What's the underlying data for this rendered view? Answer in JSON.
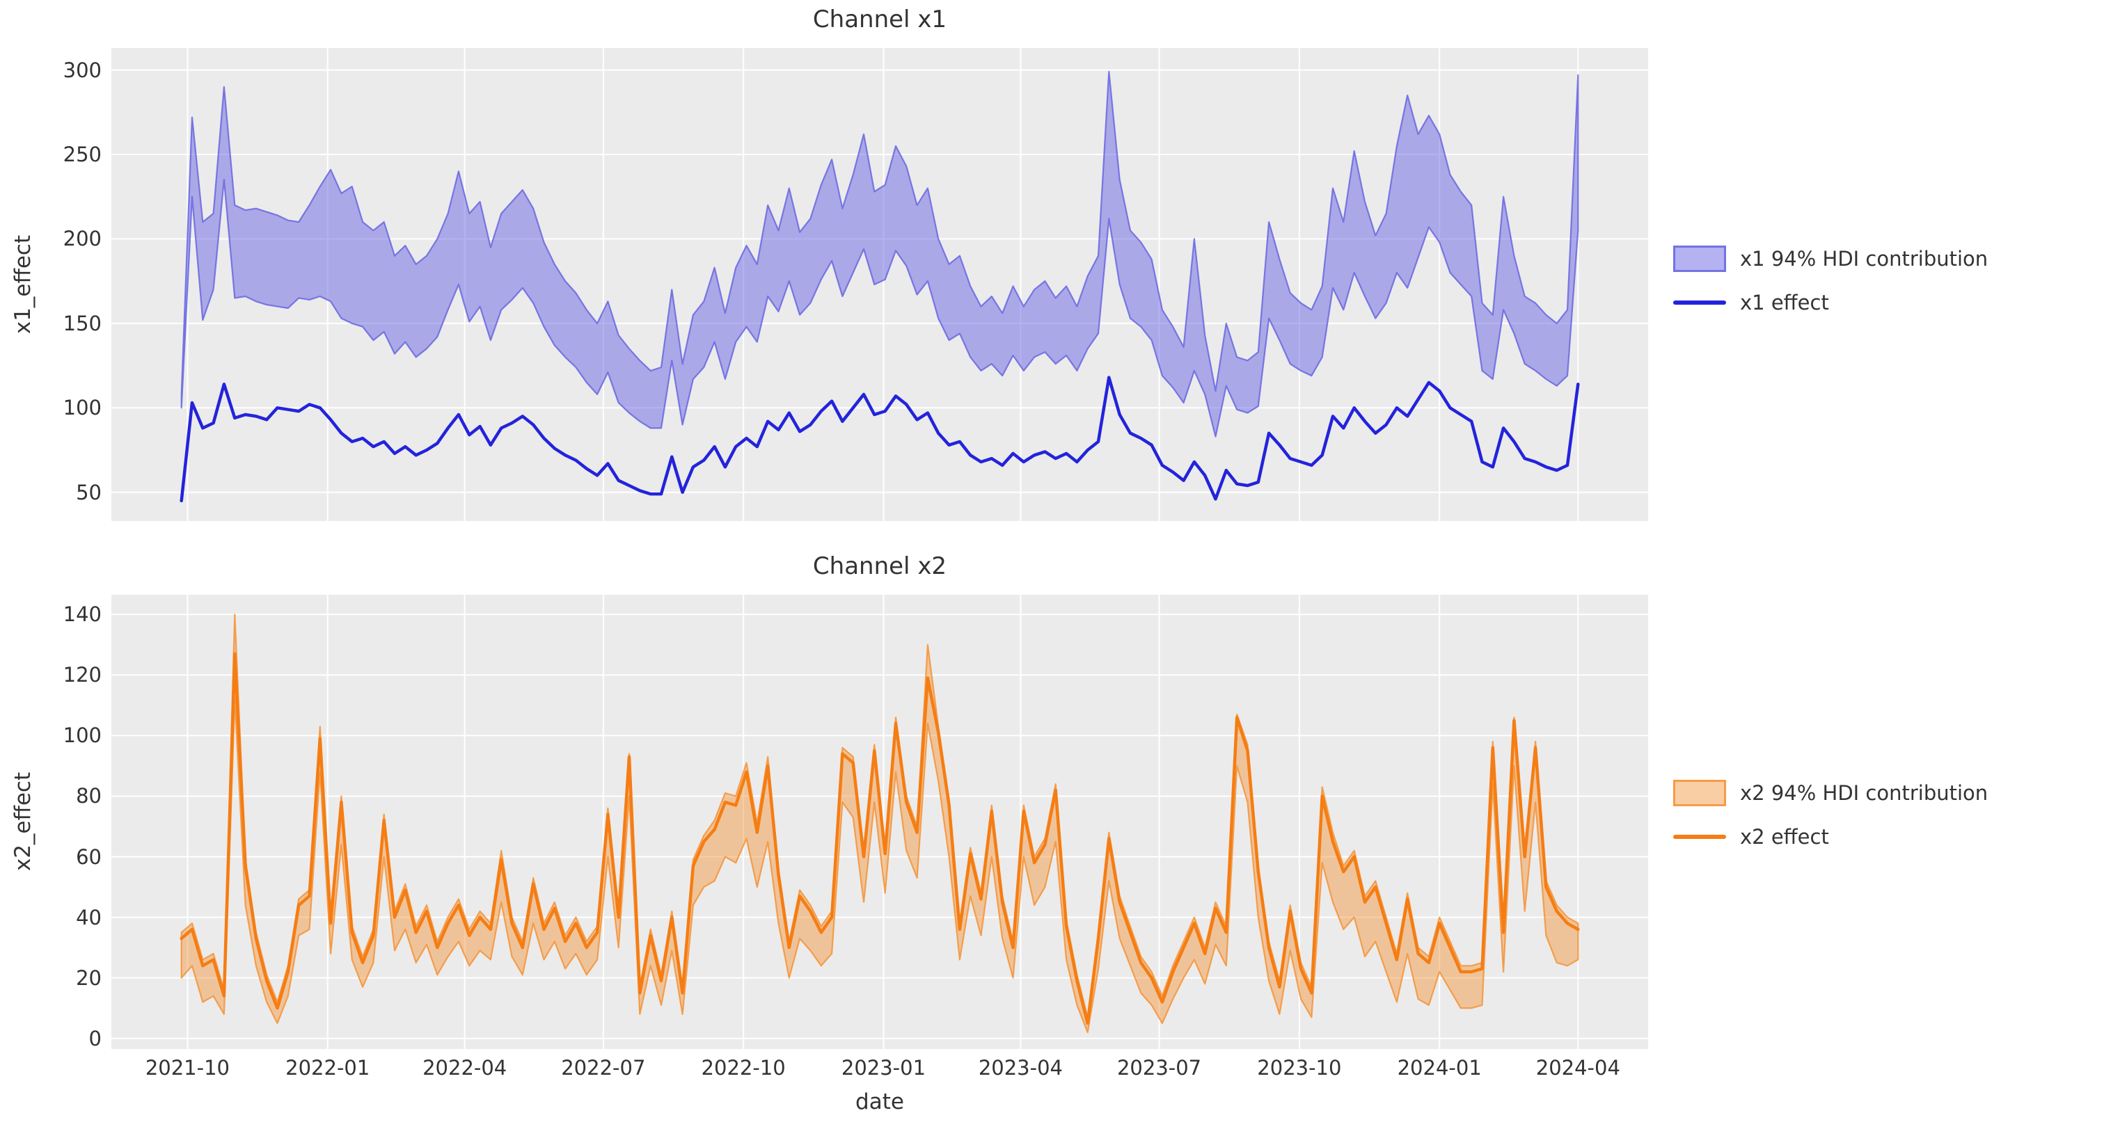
{
  "figure": {
    "background": "#ffffff",
    "panel_background": "#ebebeb",
    "grid_color": "#ffffff",
    "text_color": "#333333"
  },
  "x_axis": {
    "label": "date",
    "ticks": [
      {
        "label": "2021-10",
        "day": 50
      },
      {
        "label": "2022-01",
        "day": 142
      },
      {
        "label": "2022-04",
        "day": 232
      },
      {
        "label": "2022-07",
        "day": 323
      },
      {
        "label": "2022-10",
        "day": 415
      },
      {
        "label": "2023-01",
        "day": 507
      },
      {
        "label": "2023-04",
        "day": 597
      },
      {
        "label": "2023-07",
        "day": 688
      },
      {
        "label": "2023-10",
        "day": 780
      },
      {
        "label": "2024-01",
        "day": 872
      },
      {
        "label": "2024-04",
        "day": 963
      }
    ],
    "domain_days": [
      0,
      1009
    ]
  },
  "chart_data": [
    {
      "type": "area",
      "title": "Channel x1",
      "ylabel": "x1_effect",
      "xlabel": "date",
      "legend_position": "right",
      "band_label": "x1 94% HDI contribution",
      "line_label": "x1 effect",
      "line_color": "#2323dc",
      "band_fill": "rgba(105,102,226,0.5)",
      "band_edge": "rgba(105,102,226,0.85)",
      "grid": true,
      "ylim": [
        33,
        313
      ],
      "yticks": [
        50,
        100,
        150,
        200,
        250,
        300
      ],
      "x_start": "2021-09-27",
      "x_step_days": 7,
      "n_points": 132,
      "series": [
        {
          "name": "x1 effect",
          "values": [
            45,
            103,
            88,
            91,
            114,
            94,
            96,
            95,
            93,
            100,
            99,
            98,
            102,
            100,
            93,
            85,
            80,
            82,
            77,
            80,
            73,
            77,
            72,
            75,
            79,
            88,
            96,
            84,
            89,
            78,
            88,
            91,
            95,
            90,
            82,
            76,
            72,
            69,
            64,
            60,
            67,
            57,
            54,
            51,
            49,
            49,
            71,
            50,
            65,
            69,
            77,
            65,
            77,
            82,
            77,
            92,
            87,
            97,
            86,
            90,
            98,
            104,
            92,
            100,
            108,
            96,
            98,
            107,
            102,
            93,
            97,
            85,
            78,
            80,
            72,
            68,
            70,
            66,
            73,
            68,
            72,
            74,
            70,
            73,
            68,
            75,
            80,
            118,
            96,
            85,
            82,
            78,
            66,
            62,
            57,
            68,
            60,
            46,
            63,
            55,
            54,
            56,
            85,
            78,
            70,
            68,
            66,
            72,
            95,
            88,
            100,
            92,
            85,
            90,
            100,
            95,
            105,
            115,
            110,
            100,
            96,
            92,
            68,
            65,
            88,
            80,
            70,
            68,
            65,
            63,
            66,
            114
          ]
        },
        {
          "name": "x1 94% HDI lower",
          "values": [
            100,
            225,
            152,
            170,
            235,
            165,
            166,
            163,
            161,
            160,
            159,
            165,
            164,
            166,
            163,
            153,
            150,
            148,
            140,
            145,
            132,
            139,
            130,
            135,
            142,
            158,
            173,
            151,
            160,
            140,
            158,
            164,
            171,
            162,
            148,
            137,
            130,
            124,
            115,
            108,
            121,
            103,
            97,
            92,
            88,
            88,
            128,
            90,
            117,
            124,
            139,
            117,
            139,
            148,
            139,
            166,
            157,
            175,
            155,
            162,
            176,
            187,
            166,
            180,
            194,
            173,
            176,
            193,
            184,
            167,
            175,
            153,
            140,
            144,
            130,
            122,
            126,
            119,
            131,
            122,
            130,
            133,
            126,
            131,
            122,
            135,
            144,
            212,
            173,
            153,
            148,
            140,
            119,
            112,
            103,
            122,
            108,
            83,
            113,
            99,
            97,
            101,
            153,
            140,
            126,
            122,
            119,
            130,
            171,
            158,
            180,
            166,
            153,
            162,
            180,
            171,
            189,
            207,
            198,
            180,
            173,
            166,
            122,
            117,
            158,
            144,
            126,
            122,
            117,
            113,
            119,
            205
          ]
        },
        {
          "name": "x1 94% HDI upper",
          "values": [
            108,
            272,
            210,
            215,
            290,
            220,
            217,
            218,
            216,
            214,
            211,
            210,
            220,
            231,
            241,
            227,
            231,
            210,
            205,
            210,
            190,
            196,
            185,
            190,
            200,
            215,
            240,
            215,
            222,
            195,
            215,
            222,
            229,
            218,
            198,
            185,
            175,
            168,
            158,
            150,
            163,
            143,
            135,
            128,
            122,
            124,
            170,
            126,
            155,
            163,
            183,
            156,
            183,
            196,
            185,
            220,
            205,
            230,
            204,
            212,
            232,
            247,
            218,
            238,
            262,
            228,
            232,
            255,
            243,
            220,
            230,
            200,
            185,
            190,
            172,
            160,
            166,
            156,
            172,
            160,
            170,
            175,
            165,
            172,
            160,
            178,
            190,
            299,
            235,
            205,
            198,
            188,
            158,
            148,
            136,
            200,
            143,
            110,
            150,
            130,
            128,
            133,
            210,
            188,
            168,
            162,
            158,
            172,
            230,
            210,
            252,
            222,
            202,
            215,
            255,
            285,
            262,
            273,
            262,
            238,
            228,
            220,
            162,
            155,
            225,
            190,
            166,
            162,
            155,
            150,
            158,
            297
          ]
        }
      ]
    },
    {
      "type": "area",
      "title": "Channel x2",
      "ylabel": "x2_effect",
      "xlabel": "date",
      "legend_position": "right",
      "band_label": "x2 94% HDI contribution",
      "line_label": "x2 effect",
      "line_color": "#f57d13",
      "band_fill": "rgba(244,147,54,0.45)",
      "band_edge": "rgba(244,147,54,0.85)",
      "grid": true,
      "ylim": [
        -3.5,
        146.5
      ],
      "yticks": [
        0,
        20,
        40,
        60,
        80,
        100,
        120,
        140
      ],
      "x_start": "2021-09-27",
      "x_step_days": 7,
      "n_points": 132,
      "series": [
        {
          "name": "x2 effect",
          "values": [
            33,
            36,
            24,
            26,
            14,
            127,
            57,
            33,
            19,
            10,
            22,
            44,
            47,
            99,
            38,
            78,
            35,
            25,
            34,
            72,
            40,
            49,
            35,
            42,
            30,
            38,
            44,
            34,
            40,
            36,
            59,
            38,
            30,
            51,
            36,
            43,
            32,
            38,
            30,
            35,
            74,
            40,
            93,
            15,
            34,
            19,
            40,
            15,
            57,
            65,
            69,
            78,
            77,
            88,
            68,
            90,
            54,
            30,
            47,
            42,
            35,
            40,
            94,
            91,
            60,
            95,
            61,
            104,
            78,
            68,
            119,
            101,
            77,
            36,
            61,
            46,
            75,
            45,
            30,
            75,
            58,
            64,
            82,
            37,
            19,
            5,
            33,
            66,
            45,
            35,
            25,
            20,
            12,
            22,
            30,
            38,
            28,
            43,
            35,
            106,
            95,
            55,
            30,
            17,
            42,
            23,
            15,
            80,
            65,
            55,
            60,
            45,
            50,
            38,
            26,
            46,
            28,
            25,
            38,
            30,
            22,
            22,
            23,
            96,
            35,
            105,
            60,
            96,
            50,
            42,
            38,
            36
          ]
        },
        {
          "name": "x2 94% HDI lower",
          "values": [
            20,
            24,
            12,
            14,
            8,
            112,
            44,
            24,
            12,
            5,
            14,
            34,
            36,
            88,
            28,
            64,
            26,
            17,
            25,
            60,
            29,
            36,
            25,
            31,
            21,
            27,
            32,
            24,
            29,
            26,
            45,
            27,
            21,
            38,
            26,
            32,
            23,
            28,
            21,
            26,
            60,
            30,
            80,
            8,
            24,
            11,
            29,
            8,
            44,
            50,
            52,
            60,
            58,
            66,
            50,
            65,
            38,
            20,
            33,
            29,
            24,
            28,
            78,
            73,
            45,
            78,
            48,
            88,
            62,
            53,
            104,
            85,
            60,
            26,
            47,
            34,
            60,
            33,
            20,
            60,
            44,
            50,
            65,
            26,
            11,
            2,
            23,
            52,
            33,
            24,
            15,
            11,
            5,
            13,
            20,
            26,
            18,
            31,
            24,
            90,
            78,
            40,
            19,
            8,
            29,
            13,
            7,
            58,
            45,
            36,
            40,
            27,
            32,
            22,
            12,
            28,
            13,
            11,
            22,
            16,
            10,
            10,
            11,
            84,
            22,
            90,
            42,
            78,
            34,
            25,
            24,
            26
          ]
        },
        {
          "name": "x2 94% HDI upper",
          "values": [
            35,
            38,
            26,
            28,
            16,
            140,
            59,
            35,
            21,
            12,
            24,
            46,
            49,
            103,
            40,
            80,
            37,
            27,
            36,
            74,
            42,
            51,
            37,
            44,
            32,
            40,
            46,
            36,
            42,
            38,
            62,
            40,
            32,
            53,
            38,
            45,
            34,
            40,
            32,
            37,
            76,
            42,
            94,
            17,
            36,
            21,
            42,
            17,
            59,
            67,
            72,
            81,
            80,
            91,
            71,
            93,
            56,
            32,
            49,
            44,
            37,
            42,
            96,
            93,
            62,
            97,
            63,
            106,
            80,
            70,
            130,
            103,
            79,
            38,
            63,
            48,
            77,
            47,
            32,
            77,
            60,
            66,
            84,
            39,
            21,
            7,
            35,
            68,
            47,
            37,
            27,
            22,
            14,
            24,
            32,
            40,
            30,
            45,
            37,
            107,
            97,
            57,
            32,
            19,
            44,
            25,
            17,
            83,
            68,
            57,
            62,
            47,
            52,
            40,
            28,
            48,
            30,
            27,
            40,
            32,
            24,
            24,
            25,
            98,
            37,
            106,
            62,
            98,
            52,
            44,
            40,
            38
          ]
        }
      ]
    }
  ]
}
